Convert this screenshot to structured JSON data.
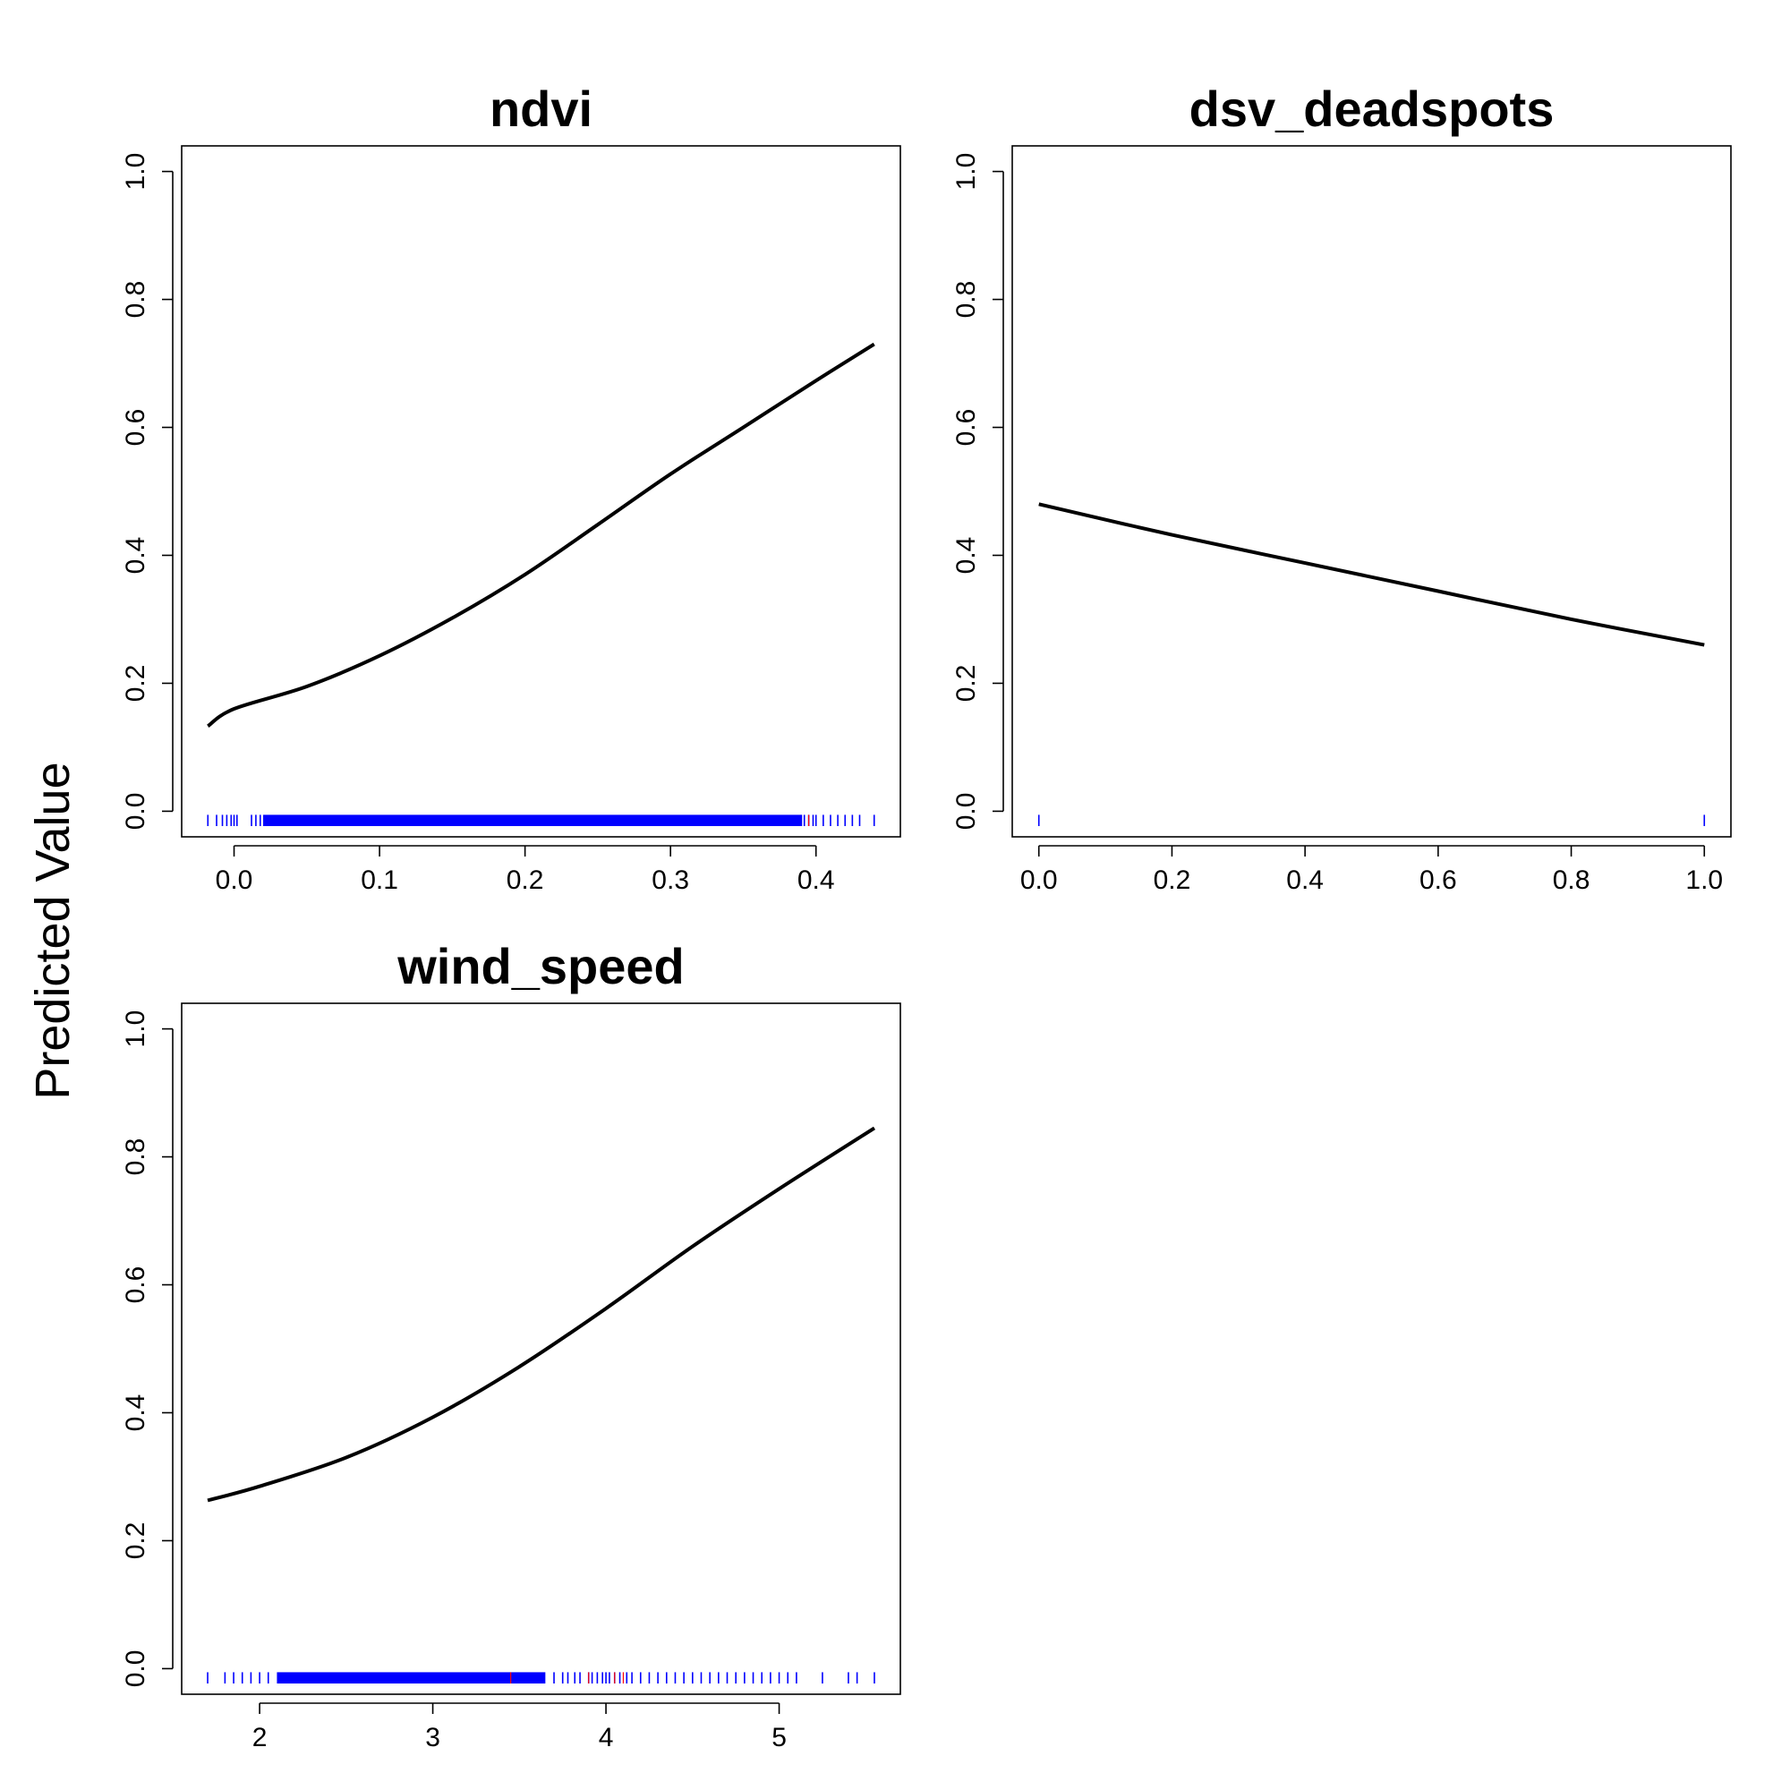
{
  "figure": {
    "ylabel": "Predicted Value"
  },
  "chart_data": [
    {
      "type": "line",
      "title": "ndvi",
      "xlabel": "",
      "ylabel": "",
      "xlim": [
        -0.036,
        0.458
      ],
      "ylim": [
        -0.04,
        1.04
      ],
      "xticks": [
        0.0,
        0.1,
        0.2,
        0.3,
        0.4
      ],
      "xtick_labels": [
        "0.0",
        "0.1",
        "0.2",
        "0.3",
        "0.4"
      ],
      "yticks": [
        0.0,
        0.2,
        0.4,
        0.6,
        0.8,
        1.0
      ],
      "ytick_labels": [
        "0.0",
        "0.2",
        "0.4",
        "0.6",
        "0.8",
        "1.0"
      ],
      "grid": false,
      "curve": {
        "x": [
          -0.018,
          0.0,
          0.05,
          0.1,
          0.15,
          0.2,
          0.25,
          0.3,
          0.35,
          0.4,
          0.44
        ],
        "y": [
          0.133,
          0.16,
          0.195,
          0.243,
          0.302,
          0.37,
          0.448,
          0.527,
          0.6,
          0.673,
          0.73
        ]
      },
      "rug": {
        "dense_range": [
          0.02,
          0.39
        ],
        "ticks": [
          -0.018,
          -0.012,
          -0.008,
          -0.005,
          -0.002,
          0.0,
          0.002,
          0.012,
          0.015,
          0.018,
          0.39,
          0.392,
          0.395,
          0.398,
          0.4,
          0.405,
          0.41,
          0.415,
          0.42,
          0.425,
          0.43,
          0.44
        ],
        "red_ticks": [
          0.395
        ]
      }
    },
    {
      "type": "line",
      "title": "dsv_deadspots",
      "xlabel": "",
      "ylabel": "",
      "xlim": [
        -0.04,
        1.04
      ],
      "ylim": [
        -0.04,
        1.04
      ],
      "xticks": [
        0.0,
        0.2,
        0.4,
        0.6,
        0.8,
        1.0
      ],
      "xtick_labels": [
        "0.0",
        "0.2",
        "0.4",
        "0.6",
        "0.8",
        "1.0"
      ],
      "yticks": [
        0.0,
        0.2,
        0.4,
        0.6,
        0.8,
        1.0
      ],
      "ytick_labels": [
        "0.0",
        "0.2",
        "0.4",
        "0.6",
        "0.8",
        "1.0"
      ],
      "grid": false,
      "curve": {
        "x": [
          0.0,
          0.2,
          0.4,
          0.6,
          0.8,
          1.0
        ],
        "y": [
          0.48,
          0.432,
          0.388,
          0.344,
          0.3,
          0.26
        ]
      },
      "rug": {
        "dense_range": null,
        "ticks": [
          0.0,
          1.0
        ],
        "red_ticks": []
      }
    },
    {
      "type": "line",
      "title": "wind_speed",
      "xlabel": "",
      "ylabel": "",
      "xlim": [
        1.55,
        5.7
      ],
      "ylim": [
        -0.04,
        1.04
      ],
      "xticks": [
        2,
        3,
        4,
        5
      ],
      "xtick_labels": [
        "2",
        "3",
        "4",
        "5"
      ],
      "yticks": [
        0.0,
        0.2,
        0.4,
        0.6,
        0.8,
        1.0
      ],
      "ytick_labels": [
        "0.0",
        "0.2",
        "0.4",
        "0.6",
        "0.8",
        "1.0"
      ],
      "grid": false,
      "curve": {
        "x": [
          1.7,
          2.0,
          2.5,
          3.0,
          3.5,
          4.0,
          4.5,
          5.0,
          5.55
        ],
        "y": [
          0.263,
          0.285,
          0.33,
          0.393,
          0.472,
          0.563,
          0.66,
          0.75,
          0.845
        ]
      },
      "rug": {
        "dense_range": [
          2.1,
          3.65
        ],
        "ticks": [
          1.7,
          1.8,
          1.85,
          1.9,
          1.95,
          2.0,
          2.05,
          3.7,
          3.75,
          3.78,
          3.82,
          3.85,
          3.9,
          3.92,
          3.95,
          3.98,
          4.0,
          4.02,
          4.05,
          4.08,
          4.12,
          4.15,
          4.2,
          4.25,
          4.3,
          4.35,
          4.4,
          4.45,
          4.5,
          4.55,
          4.6,
          4.65,
          4.7,
          4.75,
          4.8,
          4.85,
          4.9,
          4.95,
          5.0,
          5.05,
          5.1,
          5.25,
          5.4,
          5.45,
          5.55
        ],
        "red_ticks": [
          3.45,
          3.9,
          4.05,
          4.1
        ]
      }
    }
  ]
}
